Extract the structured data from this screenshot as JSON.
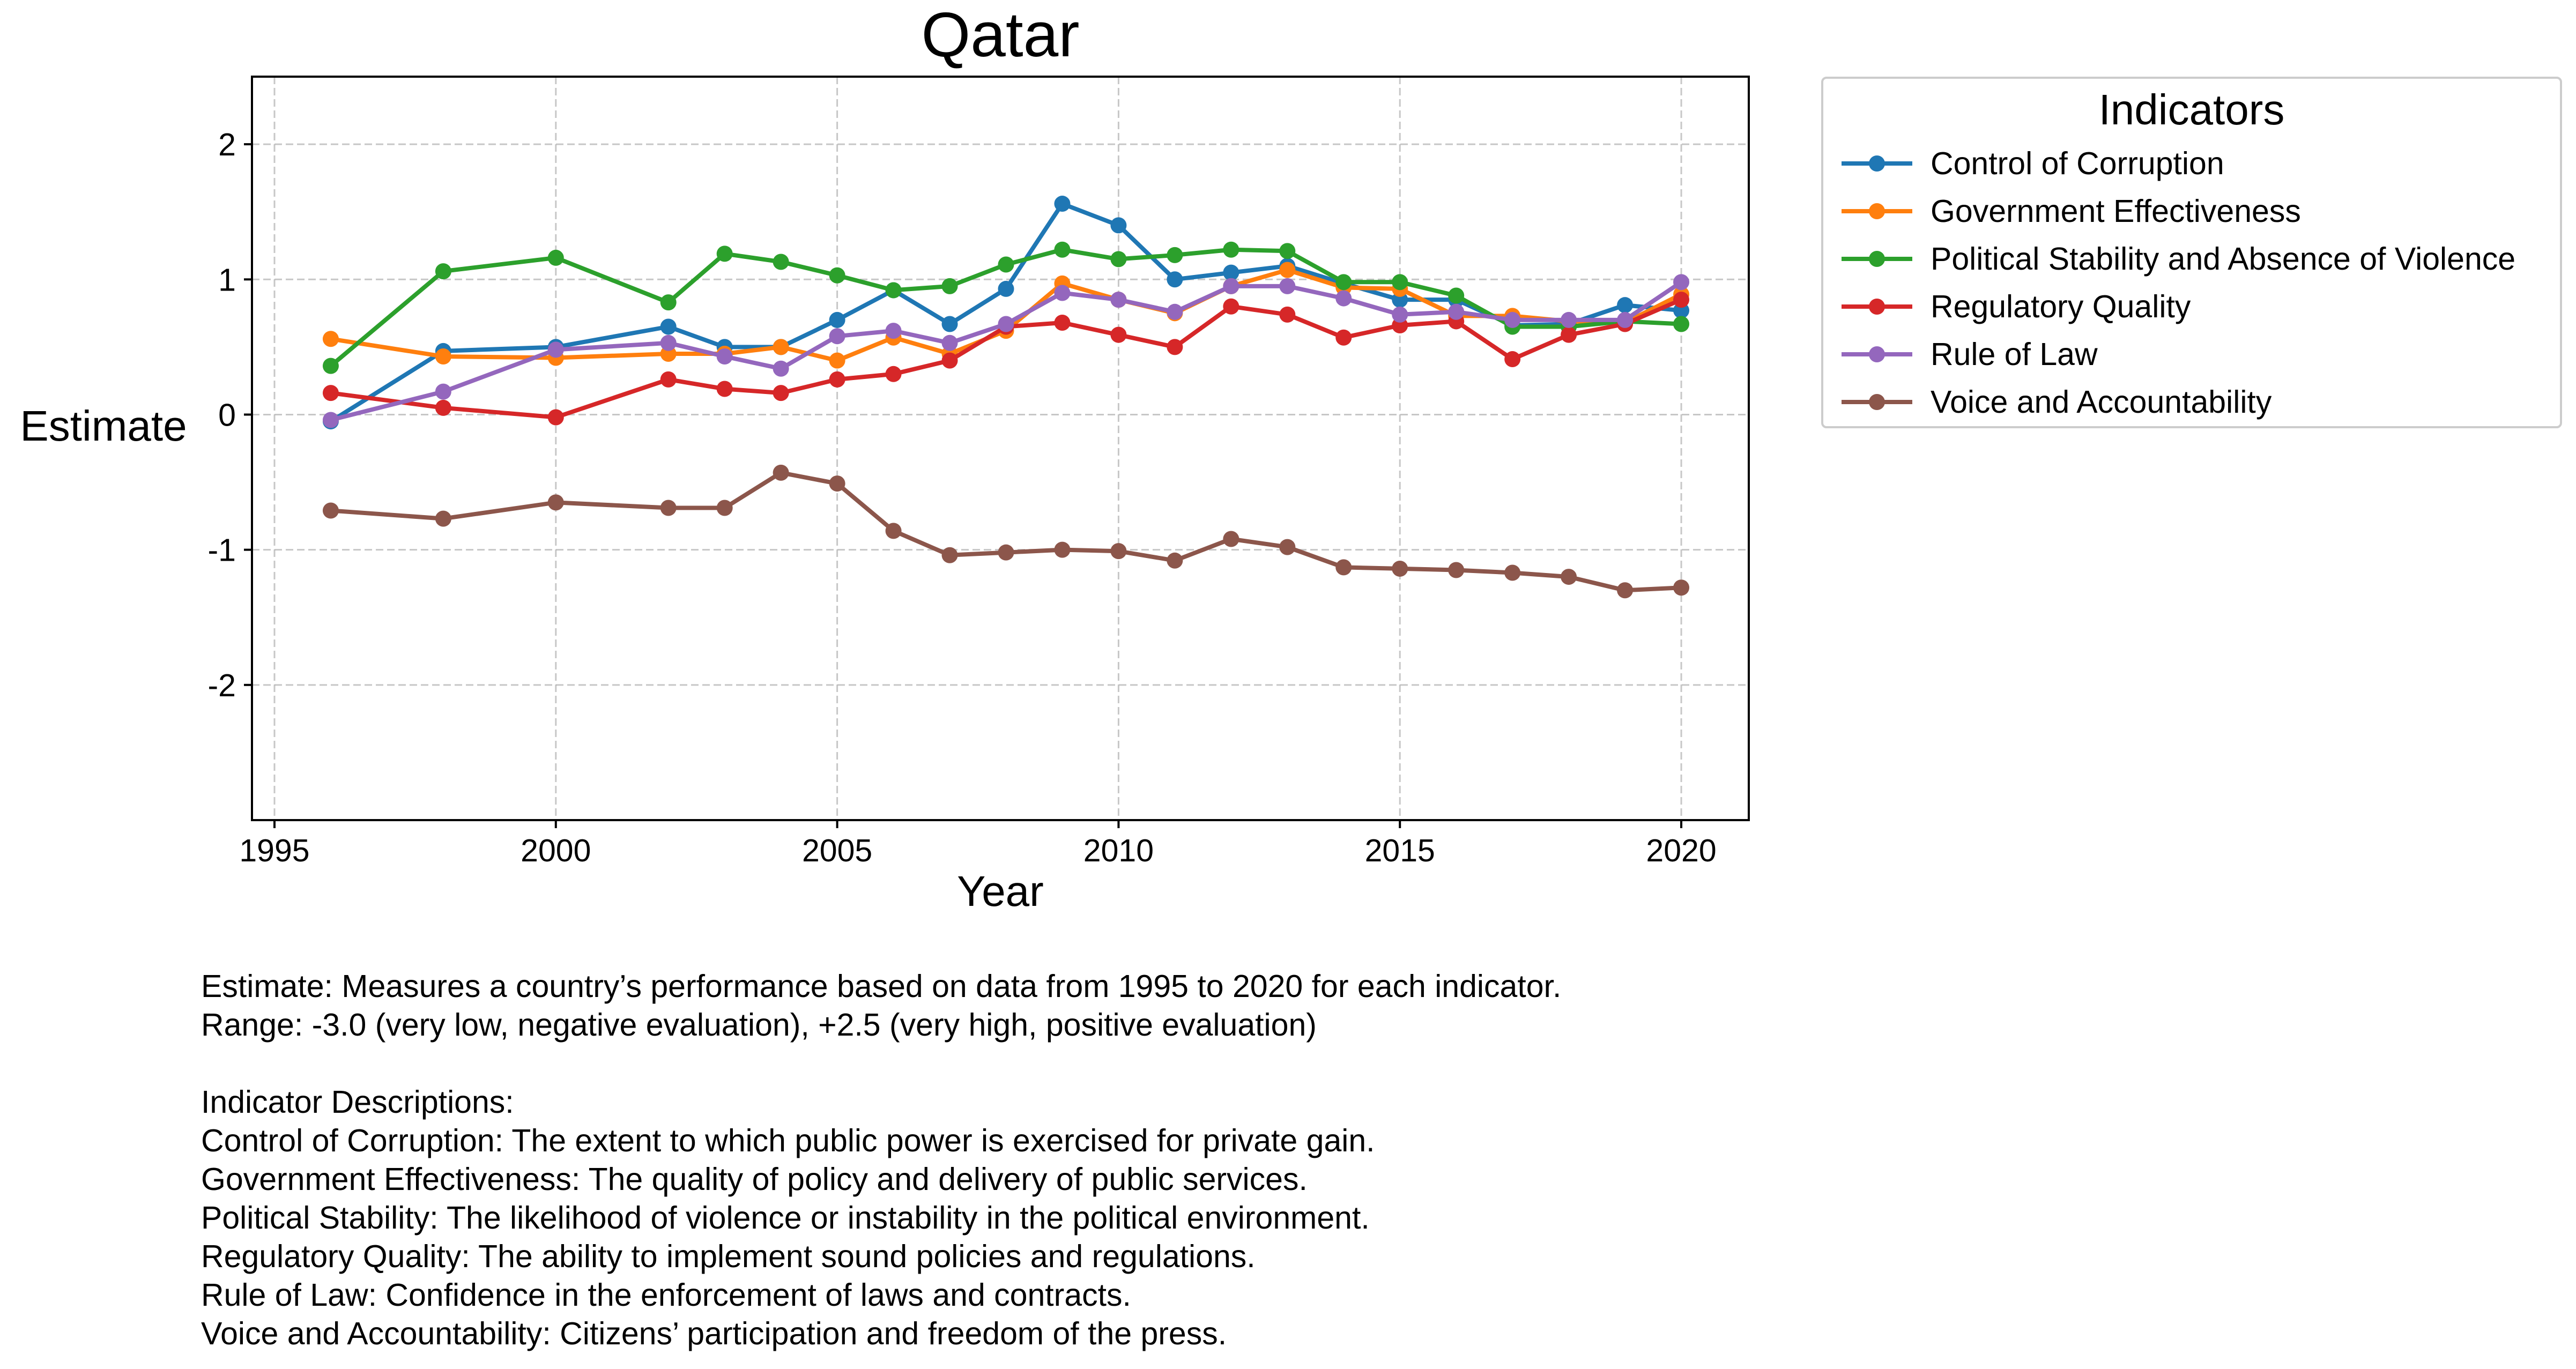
{
  "chart_data": {
    "type": "line",
    "title": "Qatar",
    "xlabel": "Year",
    "ylabel": "Estimate",
    "xlim": [
      1994.6,
      2021.2
    ],
    "ylim": [
      -3.0,
      2.5
    ],
    "xticks": [
      1995,
      2000,
      2005,
      2010,
      2015,
      2020
    ],
    "yticks": [
      -2,
      -1,
      0,
      1,
      2
    ],
    "grid": true,
    "legend_title": "Indicators",
    "legend_placement": "outside-right-top",
    "x": [
      1996,
      1998,
      2000,
      2002,
      2003,
      2004,
      2005,
      2006,
      2007,
      2008,
      2009,
      2010,
      2011,
      2012,
      2013,
      2014,
      2015,
      2016,
      2017,
      2018,
      2019,
      2020
    ],
    "series": [
      {
        "name": "Control of Corruption",
        "color": "#1f77b4",
        "values": [
          -0.05,
          0.47,
          0.5,
          0.65,
          0.5,
          0.5,
          0.7,
          0.92,
          0.67,
          0.93,
          1.56,
          1.4,
          1.0,
          1.05,
          1.1,
          0.97,
          0.85,
          0.85,
          0.66,
          0.67,
          0.81,
          0.77
        ]
      },
      {
        "name": "Government Effectiveness",
        "color": "#ff7f0e",
        "values": [
          0.56,
          0.43,
          0.42,
          0.45,
          0.45,
          0.5,
          0.4,
          0.57,
          0.45,
          0.62,
          0.97,
          0.85,
          0.75,
          0.95,
          1.07,
          0.94,
          0.93,
          0.73,
          0.73,
          0.69,
          0.68,
          0.89
        ]
      },
      {
        "name": "Political Stability and Absence of Violence",
        "color": "#2ca02c",
        "values": [
          0.36,
          1.06,
          1.16,
          0.83,
          1.19,
          1.13,
          1.03,
          0.92,
          0.95,
          1.11,
          1.22,
          1.15,
          1.18,
          1.22,
          1.21,
          0.98,
          0.98,
          0.88,
          0.65,
          0.65,
          0.69,
          0.67
        ]
      },
      {
        "name": "Regulatory Quality",
        "color": "#d62728",
        "values": [
          0.16,
          0.05,
          -0.02,
          0.26,
          0.19,
          0.16,
          0.26,
          0.3,
          0.4,
          0.65,
          0.68,
          0.59,
          0.5,
          0.8,
          0.74,
          0.57,
          0.66,
          0.69,
          0.41,
          0.59,
          0.67,
          0.85
        ]
      },
      {
        "name": "Rule of Law",
        "color": "#9467bd",
        "values": [
          -0.04,
          0.17,
          0.48,
          0.53,
          0.43,
          0.34,
          0.58,
          0.62,
          0.53,
          0.67,
          0.9,
          0.85,
          0.76,
          0.95,
          0.95,
          0.86,
          0.74,
          0.76,
          0.7,
          0.7,
          0.7,
          0.98
        ]
      },
      {
        "name": "Voice and Accountability",
        "color": "#8c564b",
        "values": [
          -0.71,
          -0.77,
          -0.65,
          -0.69,
          -0.69,
          -0.43,
          -0.51,
          -0.86,
          -1.04,
          -1.02,
          -1.0,
          -1.01,
          -1.08,
          -0.92,
          -0.98,
          -1.13,
          -1.14,
          -1.15,
          -1.17,
          -1.2,
          -1.3,
          -1.28
        ]
      }
    ]
  },
  "notes": {
    "estimate_line": "Estimate: Measures a country’s performance based on data from 1995 to 2020 for each indicator.",
    "range_line": "Range: -3.0 (very low, negative evaluation), +2.5 (very high, positive evaluation)",
    "descriptions_heading": "Indicator Descriptions:",
    "descriptions": [
      "Control of Corruption: The extent to which public power is exercised for private gain.",
      "Government Effectiveness: The quality of policy and delivery of public services.",
      "Political Stability: The likelihood of violence or instability in the political environment.",
      "Regulatory Quality: The ability to implement sound policies and regulations.",
      "Rule of Law: Confidence in the enforcement of laws and contracts.",
      "Voice and Accountability: Citizens’ participation and freedom of the press."
    ]
  }
}
